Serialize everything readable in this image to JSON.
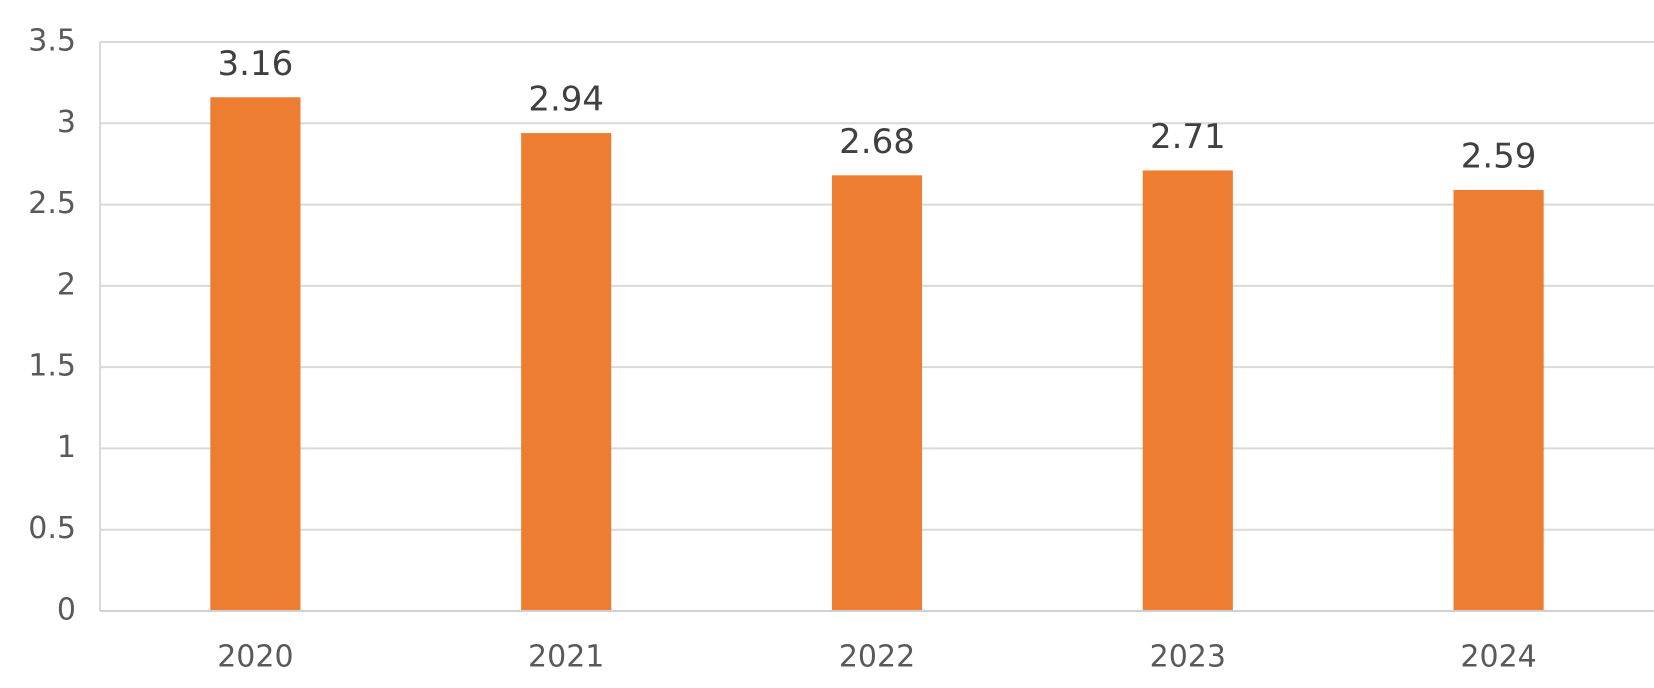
{
  "chart_data": {
    "type": "bar",
    "categories": [
      "2020",
      "2021",
      "2022",
      "2023",
      "2024"
    ],
    "values": [
      3.16,
      2.94,
      2.68,
      2.71,
      2.59
    ],
    "color": "#ed7d31",
    "ylim": [
      0,
      3.5
    ],
    "yticks": [
      0,
      0.5,
      1,
      1.5,
      2,
      2.5,
      3,
      3.5
    ],
    "grid": true
  }
}
